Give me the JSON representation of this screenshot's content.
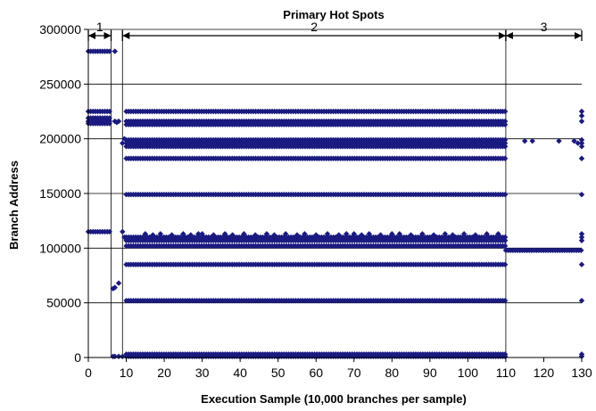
{
  "chart_data": {
    "type": "scatter",
    "title": "Primary Hot Spots",
    "xlabel": "Execution Sample (10,000 branches per sample)",
    "ylabel": "Branch Address",
    "xlim": [
      0,
      130
    ],
    "ylim": [
      0,
      300000
    ],
    "xticks": [
      0,
      10,
      20,
      30,
      40,
      50,
      60,
      70,
      80,
      90,
      100,
      110,
      120,
      130
    ],
    "xtick_labels": [
      "0",
      "10",
      "20",
      "30",
      "40",
      "50",
      "60",
      "70",
      "80",
      "90",
      "100",
      "110",
      "120",
      "130"
    ],
    "yticks": [
      0,
      50000,
      100000,
      150000,
      200000,
      250000,
      300000
    ],
    "ytick_labels": [
      "0",
      "50000",
      "100000",
      "150000",
      "200000",
      "250000",
      "300000"
    ],
    "grid": "horizontal",
    "legend": "none",
    "marker_color": "#1a1a80",
    "regions": [
      {
        "label": "1",
        "x_start": 0,
        "x_end": 6
      },
      {
        "label": "2",
        "x_start": 9,
        "x_end": 110
      },
      {
        "label": "3",
        "x_start": 110,
        "x_end": 130
      }
    ],
    "bands": [
      {
        "y": 280000,
        "x_from": 0,
        "x_to": 6
      },
      {
        "y": 225000,
        "x_from": 0,
        "x_to": 6
      },
      {
        "y": 219000,
        "x_from": 0,
        "x_to": 6
      },
      {
        "y": 216000,
        "x_from": 0,
        "x_to": 6
      },
      {
        "y": 214000,
        "x_from": 0,
        "x_to": 6
      },
      {
        "y": 115000,
        "x_from": 0,
        "x_to": 6
      },
      {
        "y": 225000,
        "x_from": 10,
        "x_to": 110
      },
      {
        "y": 216000,
        "x_from": 10,
        "x_to": 110
      },
      {
        "y": 213000,
        "x_from": 10,
        "x_to": 110
      },
      {
        "y": 199000,
        "x_from": 10,
        "x_to": 110
      },
      {
        "y": 196000,
        "x_from": 10,
        "x_to": 110
      },
      {
        "y": 193000,
        "x_from": 10,
        "x_to": 110
      },
      {
        "y": 182000,
        "x_from": 10,
        "x_to": 110
      },
      {
        "y": 149000,
        "x_from": 10,
        "x_to": 110
      },
      {
        "y": 110000,
        "x_from": 10,
        "x_to": 110
      },
      {
        "y": 107000,
        "x_from": 10,
        "x_to": 110
      },
      {
        "y": 102000,
        "x_from": 10,
        "x_to": 110
      },
      {
        "y": 85000,
        "x_from": 10,
        "x_to": 110
      },
      {
        "y": 52000,
        "x_from": 10,
        "x_to": 110
      },
      {
        "y": 3000,
        "x_from": 10,
        "x_to": 110
      },
      {
        "y": 1000,
        "x_from": 10,
        "x_to": 110
      },
      {
        "y": 98000,
        "x_from": 110,
        "x_to": 130
      }
    ],
    "points": [
      {
        "x": 7,
        "y": 280000
      },
      {
        "x": 7,
        "y": 216000
      },
      {
        "x": 7.5,
        "y": 215000
      },
      {
        "x": 8,
        "y": 216000
      },
      {
        "x": 6.5,
        "y": 63000
      },
      {
        "x": 7,
        "y": 64000
      },
      {
        "x": 8,
        "y": 68000
      },
      {
        "x": 6.5,
        "y": 1000
      },
      {
        "x": 7,
        "y": 1000
      },
      {
        "x": 8,
        "y": 1000
      },
      {
        "x": 9,
        "y": 1000
      },
      {
        "x": 9,
        "y": 196000
      },
      {
        "x": 9,
        "y": 115000
      },
      {
        "x": 9.5,
        "y": 200000
      },
      {
        "x": 9.5,
        "y": 110000
      },
      {
        "x": 15,
        "y": 113000
      },
      {
        "x": 17,
        "y": 112000
      },
      {
        "x": 19,
        "y": 113000
      },
      {
        "x": 22,
        "y": 112000
      },
      {
        "x": 25,
        "y": 113000
      },
      {
        "x": 27,
        "y": 112000
      },
      {
        "x": 29,
        "y": 113000
      },
      {
        "x": 30,
        "y": 113000
      },
      {
        "x": 33,
        "y": 112000
      },
      {
        "x": 36,
        "y": 113000
      },
      {
        "x": 38,
        "y": 112000
      },
      {
        "x": 41,
        "y": 113000
      },
      {
        "x": 44,
        "y": 112000
      },
      {
        "x": 47,
        "y": 113000
      },
      {
        "x": 49,
        "y": 112000
      },
      {
        "x": 52,
        "y": 113000
      },
      {
        "x": 55,
        "y": 112000
      },
      {
        "x": 57,
        "y": 113000
      },
      {
        "x": 60,
        "y": 112000
      },
      {
        "x": 63,
        "y": 113000
      },
      {
        "x": 66,
        "y": 112000
      },
      {
        "x": 68,
        "y": 113000
      },
      {
        "x": 70,
        "y": 113000
      },
      {
        "x": 72,
        "y": 112000
      },
      {
        "x": 74,
        "y": 113000
      },
      {
        "x": 77,
        "y": 112000
      },
      {
        "x": 80,
        "y": 113000
      },
      {
        "x": 82,
        "y": 113000
      },
      {
        "x": 85,
        "y": 112000
      },
      {
        "x": 88,
        "y": 113000
      },
      {
        "x": 91,
        "y": 112000
      },
      {
        "x": 94,
        "y": 113000
      },
      {
        "x": 96,
        "y": 112000
      },
      {
        "x": 99,
        "y": 113000
      },
      {
        "x": 102,
        "y": 112000
      },
      {
        "x": 105,
        "y": 113000
      },
      {
        "x": 108,
        "y": 113000
      },
      {
        "x": 115,
        "y": 198000
      },
      {
        "x": 117,
        "y": 198000
      },
      {
        "x": 124,
        "y": 198000
      },
      {
        "x": 128,
        "y": 198000
      },
      {
        "x": 129,
        "y": 196000
      },
      {
        "x": 130,
        "y": 225000
      },
      {
        "x": 130,
        "y": 221000
      },
      {
        "x": 130,
        "y": 216000
      },
      {
        "x": 130,
        "y": 199000
      },
      {
        "x": 130,
        "y": 196000
      },
      {
        "x": 130,
        "y": 193000
      },
      {
        "x": 130,
        "y": 182000
      },
      {
        "x": 130,
        "y": 149000
      },
      {
        "x": 130,
        "y": 113000
      },
      {
        "x": 130,
        "y": 110000
      },
      {
        "x": 130,
        "y": 107000
      },
      {
        "x": 130,
        "y": 85000
      },
      {
        "x": 130,
        "y": 52000
      },
      {
        "x": 130,
        "y": 3000
      },
      {
        "x": 130,
        "y": 1000
      }
    ]
  }
}
